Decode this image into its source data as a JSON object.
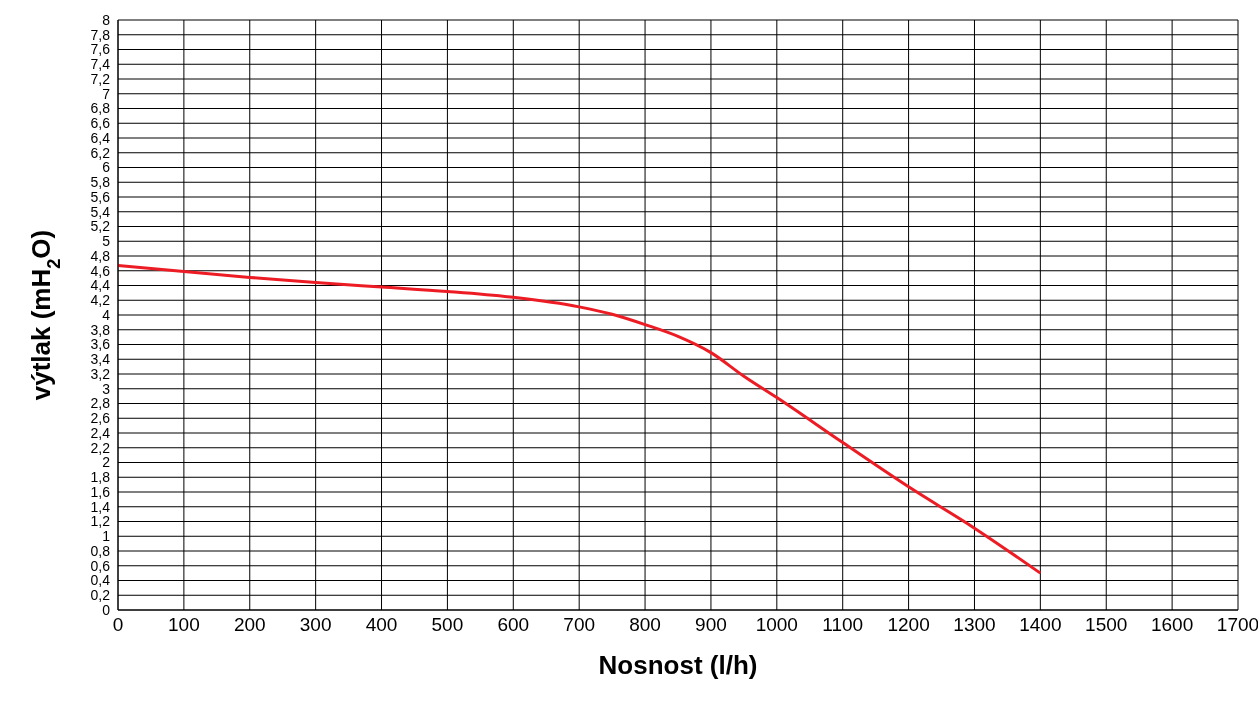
{
  "chart_data": {
    "type": "line",
    "xlabel": "Nosnost  (l/h)",
    "ylabel": "výtlak  (mH$_{2}$O)",
    "x": [
      0,
      100,
      200,
      300,
      400,
      500,
      600,
      700,
      750,
      800,
      850,
      900,
      950,
      1000,
      1100,
      1200,
      1300,
      1400
    ],
    "series": [
      {
        "color": "#ed1c24",
        "values": [
          4.67,
          4.59,
          4.51,
          4.44,
          4.38,
          4.32,
          4.24,
          4.11,
          4.01,
          3.87,
          3.71,
          3.49,
          3.17,
          2.88,
          2.27,
          1.67,
          1.11,
          0.5
        ]
      }
    ],
    "xlim": [
      0,
      1700
    ],
    "xticks": [
      0,
      100,
      200,
      300,
      400,
      500,
      600,
      700,
      800,
      900,
      1000,
      1100,
      1200,
      1300,
      1400,
      1500,
      1600,
      1700
    ],
    "ylim": [
      0,
      8
    ],
    "yticks": [
      0,
      {
        "value": 0.2,
        "label": "0,2"
      },
      {
        "value": 0.4,
        "label": "0,4"
      },
      {
        "value": 0.6,
        "label": "0,6"
      },
      {
        "value": 0.8,
        "label": "0,8"
      },
      1,
      {
        "value": 1.2,
        "label": "1,2"
      },
      {
        "value": 1.4,
        "label": "1,4"
      },
      {
        "value": 1.6,
        "label": "1,6"
      },
      {
        "value": 1.8,
        "label": "1,8"
      },
      2,
      {
        "value": 2.2,
        "label": "2,2"
      },
      {
        "value": 2.4,
        "label": "2,4"
      },
      {
        "value": 2.6,
        "label": "2,6"
      },
      {
        "value": 2.8,
        "label": "2,8"
      },
      3,
      {
        "value": 3.2,
        "label": "3,2"
      },
      {
        "value": 3.4,
        "label": "3,4"
      },
      {
        "value": 3.6,
        "label": "3,6"
      },
      {
        "value": 3.8,
        "label": "3,8"
      },
      4,
      {
        "value": 4.2,
        "label": "4,2"
      },
      {
        "value": 4.4,
        "label": "4,4"
      },
      {
        "value": 4.6,
        "label": "4,6"
      },
      {
        "value": 4.8,
        "label": "4,8"
      },
      5,
      {
        "value": 5.2,
        "label": "5,2"
      },
      {
        "value": 5.4,
        "label": "5,4"
      },
      {
        "value": 5.6,
        "label": "5,6"
      },
      {
        "value": 5.8,
        "label": "5,8"
      },
      6,
      {
        "value": 6.2,
        "label": "6,2"
      },
      {
        "value": 6.4,
        "label": "6,4"
      },
      {
        "value": 6.6,
        "label": "6,6"
      },
      {
        "value": 6.8,
        "label": "6,8"
      },
      7,
      {
        "value": 7.2,
        "label": "7,2"
      },
      {
        "value": 7.4,
        "label": "7,4"
      },
      {
        "value": 7.6,
        "label": "7,6"
      },
      {
        "value": 7.8,
        "label": "7,8"
      },
      8
    ],
    "grid": true,
    "marker": "none",
    "line_style": "solid"
  }
}
